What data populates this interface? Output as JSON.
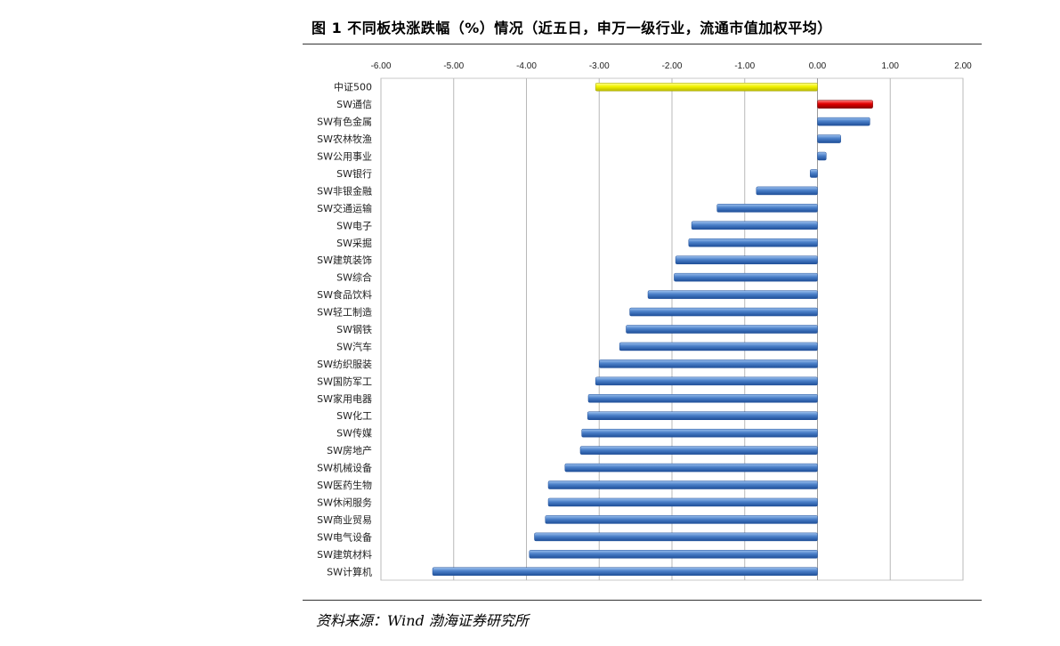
{
  "header": {
    "title": "图 1 不同板块涨跌幅（%）情况（近五日，申万一级行业，流通市值加权平均）"
  },
  "footer": {
    "source": "资料来源：Wind 渤海证券研究所"
  },
  "colors": {
    "highlight_neg": "#f2f200",
    "highlight_pos": "#e00000",
    "bar": "#4a7fc8",
    "grid": "#b8b8b8"
  },
  "chart_data": {
    "type": "bar",
    "orientation": "horizontal",
    "xlim": [
      -6,
      2
    ],
    "x_ticks": [
      "-6.00",
      "-5.00",
      "-4.00",
      "-3.00",
      "-2.00",
      "-1.00",
      "0.00",
      "1.00",
      "2.00"
    ],
    "grid": true,
    "categories": [
      "中证500",
      "SW通信",
      "SW有色金属",
      "SW农林牧渔",
      "SW公用事业",
      "SW银行",
      "SW非银金融",
      "SW交通运输",
      "SW电子",
      "SW采掘",
      "SW建筑装饰",
      "SW综合",
      "SW食品饮料",
      "SW轻工制造",
      "SW钢铁",
      "SW汽车",
      "SW纺织服装",
      "SW国防军工",
      "SW家用电器",
      "SW化工",
      "SW传媒",
      "SW房地产",
      "SW机械设备",
      "SW医药生物",
      "SW休闲服务",
      "SW商业贸易",
      "SW电气设备",
      "SW建筑材料",
      "SW计算机"
    ],
    "values": [
      -3.05,
      0.76,
      0.72,
      0.32,
      0.12,
      -0.1,
      -0.84,
      -1.38,
      -1.73,
      -1.77,
      -1.95,
      -1.97,
      -2.33,
      -2.58,
      -2.63,
      -2.72,
      -3.0,
      -3.05,
      -3.15,
      -3.16,
      -3.24,
      -3.26,
      -3.47,
      -3.7,
      -3.7,
      -3.74,
      -3.89,
      -3.96,
      -5.29
    ]
  }
}
